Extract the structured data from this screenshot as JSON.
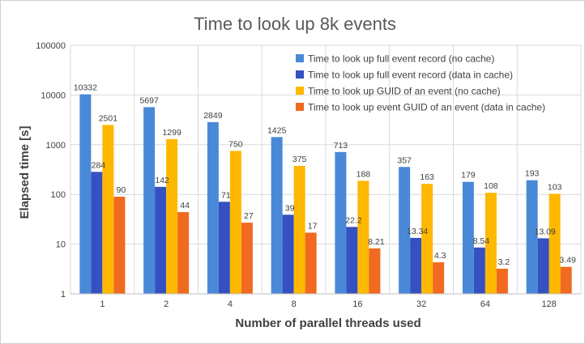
{
  "chart_data": {
    "type": "bar",
    "title": "Time to look up 8k events",
    "xlabel": "Number of parallel threads used",
    "ylabel": "Elapsed time [s]",
    "y_scale": "log",
    "ylim": [
      1,
      100000
    ],
    "y_ticks": [
      "1",
      "10",
      "100",
      "1000",
      "10000",
      "100000"
    ],
    "categories": [
      "1",
      "2",
      "4",
      "8",
      "16",
      "32",
      "64",
      "128"
    ],
    "grid": true,
    "legend_position": "top-right",
    "series": [
      {
        "name": "Time to look up full event record (no cache)",
        "color": "#4a89d8",
        "values": [
          10332,
          5697,
          2849,
          1425,
          713,
          357,
          179,
          193
        ],
        "labels": [
          "10332",
          "5697",
          "2849",
          "1425",
          "713",
          "357",
          "179",
          "193"
        ]
      },
      {
        "name": "Time to look up full event record (data in cache)",
        "color": "#3550c0",
        "values": [
          284,
          142,
          71,
          39,
          22.2,
          13.34,
          8.54,
          13.09
        ],
        "labels": [
          "284",
          "142",
          "71",
          "39",
          "22.2",
          "13.34",
          "8.54",
          "13.09"
        ]
      },
      {
        "name": "Time to look up GUID of an event (no cache)",
        "color": "#ffb800",
        "values": [
          2501,
          1299,
          750,
          375,
          188,
          163,
          108,
          103
        ],
        "labels": [
          "2501",
          "1299",
          "750",
          "375",
          "188",
          "163",
          "108",
          "103"
        ]
      },
      {
        "name": "Time to look up event GUID of an event (data in cache)",
        "color": "#f06a20",
        "values": [
          90,
          44,
          27,
          17,
          8.21,
          4.3,
          3.2,
          3.49
        ],
        "labels": [
          "90",
          "44",
          "27",
          "17",
          "8.21",
          "4.3",
          "3.2",
          "3.49"
        ]
      }
    ]
  }
}
